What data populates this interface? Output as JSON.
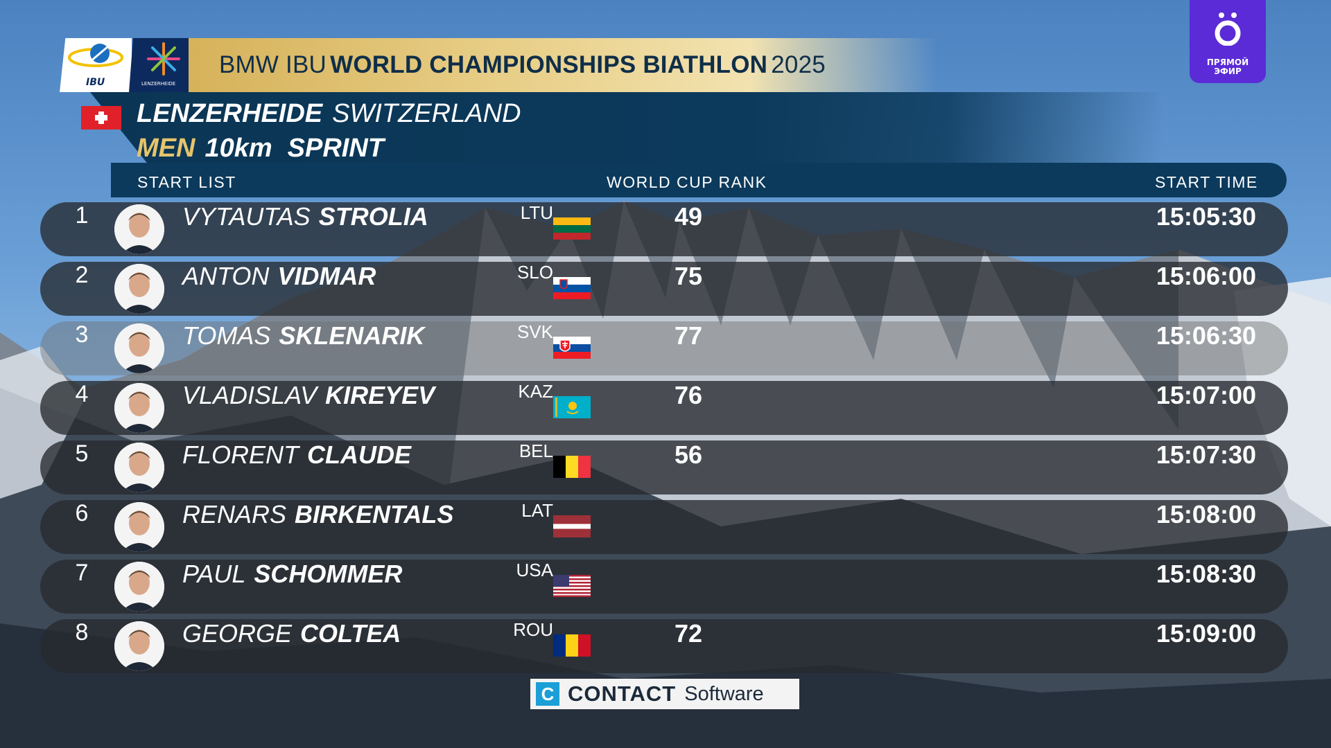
{
  "broadcast": {
    "live_badge": [
      "ПРЯМОЙ",
      "ЭФИР"
    ]
  },
  "header": {
    "logo_ibu": "IBU",
    "logo_lenzerheide": "LENZERHEIDE",
    "title_prefix": "BMW IBU",
    "title_main": "WORLD CHAMPIONSHIPS BIATHLON",
    "title_year": "2025",
    "venue": "LENZERHEIDE",
    "country": "SWITZERLAND",
    "gender": "MEN",
    "distance": "10km",
    "discipline": "SPRINT"
  },
  "columns": {
    "list": "START  LIST",
    "rank": "WORLD  CUP  RANK",
    "time": "START  TIME"
  },
  "athletes": [
    {
      "bib": "1",
      "first": "VYTAUTAS",
      "last": "STROLIA",
      "nation": "LTU",
      "rank": "49",
      "time": "15:05:30"
    },
    {
      "bib": "2",
      "first": "ANTON",
      "last": "VIDMAR",
      "nation": "SLO",
      "rank": "75",
      "time": "15:06:00"
    },
    {
      "bib": "3",
      "first": "TOMAS",
      "last": "SKLENARIK",
      "nation": "SVK",
      "rank": "77",
      "time": "15:06:30"
    },
    {
      "bib": "4",
      "first": "VLADISLAV",
      "last": "KIREYEV",
      "nation": "KAZ",
      "rank": "76",
      "time": "15:07:00"
    },
    {
      "bib": "5",
      "first": "FLORENT",
      "last": "CLAUDE",
      "nation": "BEL",
      "rank": "56",
      "time": "15:07:30"
    },
    {
      "bib": "6",
      "first": "RENARS",
      "last": "BIRKENTALS",
      "nation": "LAT",
      "rank": "",
      "time": "15:08:00"
    },
    {
      "bib": "7",
      "first": "PAUL",
      "last": "SCHOMMER",
      "nation": "USA",
      "rank": "",
      "time": "15:08:30"
    },
    {
      "bib": "8",
      "first": "GEORGE",
      "last": "COLTEA",
      "nation": "ROU",
      "rank": "72",
      "time": "15:09:00"
    }
  ],
  "sponsor": {
    "icon": "C",
    "name": "CONTACT",
    "suffix": "Software"
  },
  "colors": {
    "panel": "#0c3a5c",
    "gold": "#e6c46c",
    "live": "#5a2bd6"
  }
}
